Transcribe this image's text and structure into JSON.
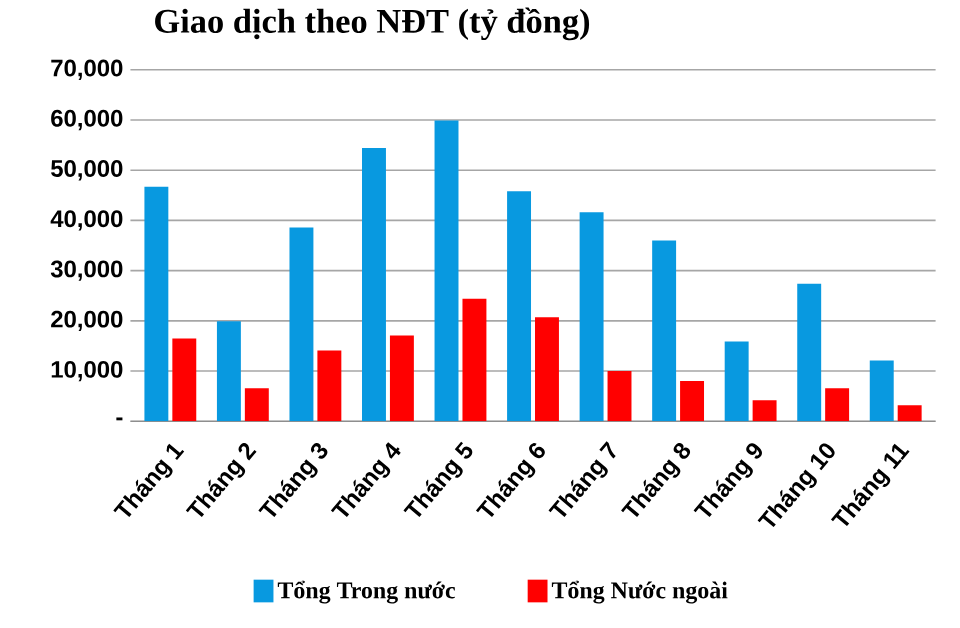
{
  "chart_data": {
    "type": "bar",
    "title": "Giao dịch theo NĐT (tỷ đồng)",
    "categories": [
      "Tháng 1",
      "Tháng 2",
      "Tháng 3",
      "Tháng 4",
      "Tháng 5",
      "Tháng 6",
      "Tháng 7",
      "Tháng 8",
      "Tháng 9",
      "Tháng 10",
      "Tháng 11"
    ],
    "series": [
      {
        "name": "Tổng Trong nước",
        "color": "#0899e0",
        "values": [
          46700,
          19900,
          38600,
          54400,
          59900,
          45800,
          41600,
          36000,
          15900,
          27400,
          12100
        ]
      },
      {
        "name": "Tổng Nước ngoài",
        "color": "#ff0000",
        "values": [
          16500,
          6600,
          14100,
          17100,
          24400,
          20700,
          10000,
          8000,
          4200,
          6600,
          3200
        ]
      }
    ],
    "ylim": [
      0,
      70000
    ],
    "yticks": [
      {
        "value": 0,
        "label": "-"
      },
      {
        "value": 10000,
        "label": "10,000"
      },
      {
        "value": 20000,
        "label": "20,000"
      },
      {
        "value": 30000,
        "label": "30,000"
      },
      {
        "value": 40000,
        "label": "40,000"
      },
      {
        "value": 50000,
        "label": "50,000"
      },
      {
        "value": 60000,
        "label": "60,000"
      },
      {
        "value": 70000,
        "label": "70,000"
      }
    ],
    "grid": "y",
    "legend": "bottom"
  }
}
